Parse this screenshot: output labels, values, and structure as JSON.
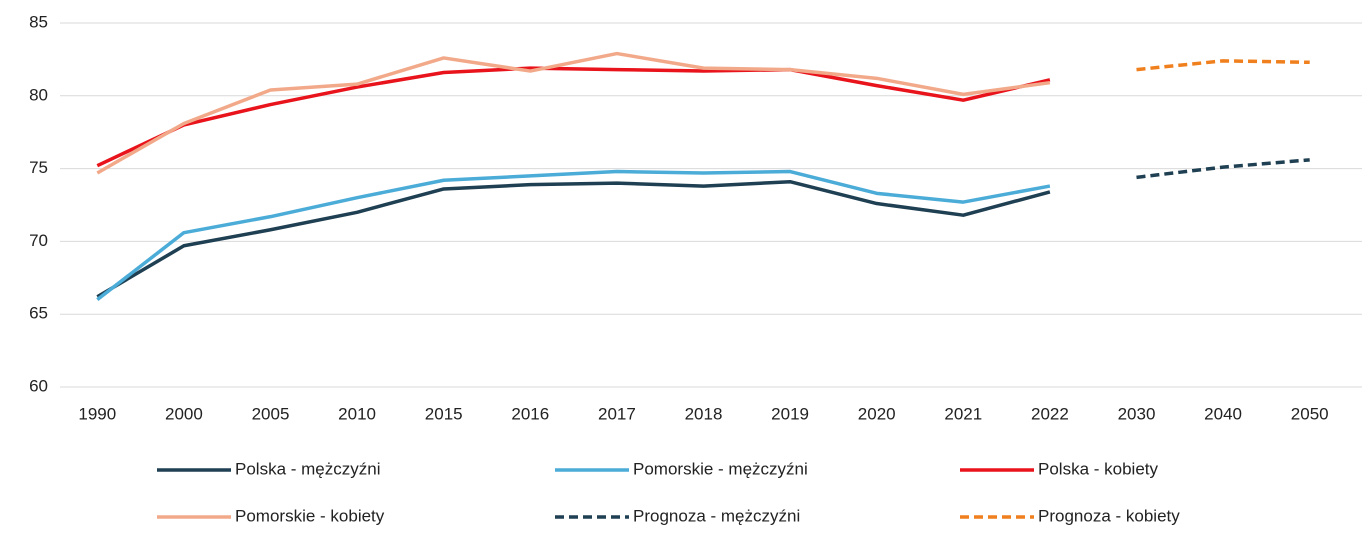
{
  "chart_data": {
    "type": "line",
    "categories": [
      "1990",
      "2000",
      "2005",
      "2010",
      "2015",
      "2016",
      "2017",
      "2018",
      "2019",
      "2020",
      "2021",
      "2022",
      "2030",
      "2040",
      "2050"
    ],
    "series": [
      {
        "name": "Polska - mężczyźni",
        "color": "#1f3f52",
        "values": [
          66.2,
          69.7,
          70.8,
          72.0,
          73.6,
          73.9,
          74.0,
          73.8,
          74.1,
          72.6,
          71.8,
          73.4,
          null,
          null,
          null
        ]
      },
      {
        "name": "Pomorskie -  mężczyźni",
        "color": "#4bacd8",
        "values": [
          66.0,
          70.6,
          71.7,
          73.0,
          74.2,
          74.5,
          74.8,
          74.7,
          74.8,
          73.3,
          72.7,
          73.8,
          null,
          null,
          null
        ]
      },
      {
        "name": "Polska - kobiety",
        "color": "#e8131b",
        "values": [
          75.2,
          78.0,
          79.4,
          80.6,
          81.6,
          81.9,
          81.8,
          81.7,
          81.8,
          80.7,
          79.7,
          81.1,
          null,
          null,
          null
        ]
      },
      {
        "name": "Pomorskie - kobiety",
        "color": "#f2a98a",
        "values": [
          74.7,
          78.1,
          80.4,
          80.8,
          82.6,
          81.7,
          82.9,
          81.9,
          81.8,
          81.2,
          80.1,
          80.9,
          null,
          null,
          null
        ]
      },
      {
        "name": "Prognoza - mężczyźni",
        "color": "#1f3f52",
        "dashed": true,
        "values": [
          null,
          null,
          null,
          null,
          null,
          null,
          null,
          null,
          null,
          null,
          null,
          null,
          74.4,
          75.1,
          75.6
        ]
      },
      {
        "name": "Prognoza - kobiety",
        "color": "#f07f1d",
        "dashed": true,
        "values": [
          null,
          null,
          null,
          null,
          null,
          null,
          null,
          null,
          null,
          null,
          null,
          null,
          81.8,
          82.4,
          82.3
        ]
      }
    ],
    "ylim": [
      60,
      85
    ],
    "yticks": [
      60,
      65,
      70,
      75,
      80,
      85
    ],
    "grid": true,
    "legend": "bottom"
  }
}
